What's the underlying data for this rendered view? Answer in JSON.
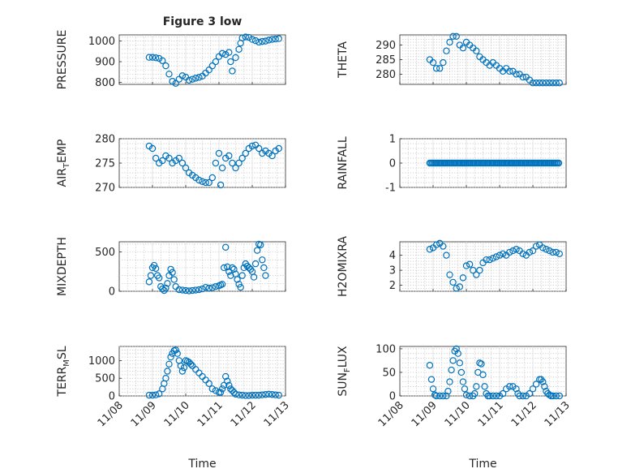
{
  "figure": {
    "title": "Figure 3 low",
    "x_label": "Time"
  },
  "colors": {
    "marker": "#0072BD",
    "axes": "#262626",
    "grid": "#bdbdbd"
  },
  "chart_data": [
    {
      "type": "scatter",
      "ylabel": "PRESSURE",
      "title": "Figure 3 low",
      "xlim": [
        0,
        5
      ],
      "ylim": [
        790,
        1030
      ],
      "yticks": [
        800,
        900,
        1000
      ],
      "yticklabels": [
        "800",
        "900",
        "1000"
      ],
      "x_tick_labels_shown": false,
      "grid": true,
      "marker": "open-circle",
      "x": [
        0.9,
        1.0,
        1.1,
        1.2,
        1.3,
        1.4,
        1.5,
        1.6,
        1.7,
        1.8,
        1.9,
        2.0,
        2.1,
        2.2,
        2.3,
        2.4,
        2.5,
        2.6,
        2.7,
        2.8,
        2.9,
        3.0,
        3.1,
        3.2,
        3.3,
        3.35,
        3.4,
        3.5,
        3.6,
        3.65,
        3.7,
        3.8,
        3.9,
        4.0,
        4.1,
        4.2,
        4.3,
        4.4,
        4.5,
        4.6,
        4.7,
        4.8
      ],
      "y": [
        921,
        921,
        919,
        916,
        905,
        880,
        840,
        805,
        795,
        815,
        832,
        825,
        810,
        815,
        820,
        824,
        830,
        845,
        860,
        880,
        900,
        925,
        940,
        935,
        945,
        900,
        855,
        920,
        960,
        990,
        1015,
        1020,
        1018,
        1008,
        1002,
        995,
        998,
        1000,
        1005,
        1008,
        1010,
        1012
      ]
    },
    {
      "type": "scatter",
      "ylabel": "THETA",
      "xlim": [
        0,
        5
      ],
      "ylim": [
        276.5,
        293.5
      ],
      "yticks": [
        280,
        285,
        290
      ],
      "yticklabels": [
        "280",
        "285",
        "290"
      ],
      "x_tick_labels_shown": false,
      "grid": true,
      "marker": "open-circle",
      "x": [
        0.9,
        1.0,
        1.1,
        1.2,
        1.3,
        1.4,
        1.5,
        1.6,
        1.7,
        1.8,
        1.9,
        2.0,
        2.1,
        2.2,
        2.3,
        2.4,
        2.5,
        2.6,
        2.7,
        2.8,
        2.9,
        3.0,
        3.1,
        3.2,
        3.3,
        3.4,
        3.5,
        3.6,
        3.7,
        3.8,
        3.9,
        4.0,
        4.1,
        4.2,
        4.3,
        4.4,
        4.5,
        4.6,
        4.7,
        4.8
      ],
      "y": [
        285,
        284,
        282,
        282,
        284,
        288,
        291,
        293,
        293,
        290,
        289,
        291,
        290,
        289,
        288,
        286,
        285,
        284,
        283,
        284,
        283,
        282,
        281,
        282,
        281,
        281,
        280,
        280,
        279,
        279,
        278,
        277,
        277,
        277,
        277,
        277,
        277,
        277,
        277,
        277
      ]
    },
    {
      "type": "scatter",
      "ylabel": "AIR_TEMP",
      "xlim": [
        0,
        5
      ],
      "ylim": [
        270,
        280
      ],
      "yticks": [
        270,
        275,
        280
      ],
      "yticklabels": [
        "270",
        "275",
        "280"
      ],
      "x_tick_labels_shown": false,
      "grid": true,
      "marker": "open-circle",
      "x": [
        0.9,
        1.0,
        1.1,
        1.2,
        1.3,
        1.4,
        1.5,
        1.6,
        1.7,
        1.8,
        1.9,
        2.0,
        2.1,
        2.2,
        2.3,
        2.4,
        2.5,
        2.6,
        2.7,
        2.8,
        2.9,
        3.0,
        3.05,
        3.1,
        3.2,
        3.3,
        3.4,
        3.5,
        3.6,
        3.7,
        3.8,
        3.9,
        4.0,
        4.1,
        4.2,
        4.3,
        4.4,
        4.5,
        4.6,
        4.7,
        4.8
      ],
      "y": [
        278.5,
        278,
        276,
        275,
        275.5,
        276.5,
        276,
        275,
        275.5,
        276,
        275,
        274,
        273,
        272.5,
        272,
        271.5,
        271.2,
        271,
        271,
        272,
        275,
        277,
        270.5,
        274,
        276,
        276.5,
        275,
        274,
        275,
        276,
        277,
        278,
        278.5,
        278.7,
        278,
        277,
        277.5,
        277,
        276.5,
        277.5,
        278
      ]
    },
    {
      "type": "scatter",
      "ylabel": "RAINFALL",
      "xlim": [
        0,
        5
      ],
      "ylim": [
        -1,
        1
      ],
      "yticks": [
        -1,
        0,
        1
      ],
      "yticklabels": [
        "-1",
        "0",
        "1"
      ],
      "x_tick_labels_shown": false,
      "grid": true,
      "marker": "open-circle",
      "x_start": 0.9,
      "x_end": 4.8,
      "constant_y": 0
    },
    {
      "type": "scatter",
      "ylabel": "MIXDEPTH",
      "xlim": [
        0,
        5
      ],
      "ylim": [
        0,
        630
      ],
      "yticks": [
        0,
        500
      ],
      "yticklabels": [
        "0",
        "500"
      ],
      "x_tick_labels_shown": false,
      "grid": true,
      "marker": "open-circle",
      "x": [
        0.9,
        0.95,
        1.0,
        1.05,
        1.1,
        1.15,
        1.2,
        1.25,
        1.3,
        1.35,
        1.4,
        1.45,
        1.5,
        1.55,
        1.6,
        1.65,
        1.7,
        1.8,
        1.9,
        2.0,
        2.1,
        2.2,
        2.3,
        2.4,
        2.5,
        2.6,
        2.7,
        2.8,
        2.9,
        3.0,
        3.05,
        3.1,
        3.15,
        3.2,
        3.25,
        3.3,
        3.35,
        3.4,
        3.45,
        3.5,
        3.55,
        3.6,
        3.65,
        3.7,
        3.75,
        3.8,
        3.85,
        3.9,
        3.95,
        4.0,
        4.05,
        4.1,
        4.15,
        4.2,
        4.25,
        4.3,
        4.35,
        4.4
      ],
      "y": [
        120,
        200,
        300,
        330,
        290,
        200,
        170,
        60,
        30,
        10,
        40,
        100,
        200,
        280,
        240,
        150,
        60,
        20,
        15,
        10,
        5,
        10,
        15,
        20,
        30,
        50,
        40,
        45,
        60,
        70,
        80,
        90,
        300,
        560,
        310,
        250,
        200,
        300,
        280,
        220,
        150,
        90,
        50,
        200,
        300,
        350,
        320,
        300,
        280,
        250,
        180,
        350,
        520,
        600,
        590,
        400,
        300,
        200
      ]
    },
    {
      "type": "scatter",
      "ylabel": "H2OMIXRA",
      "xlim": [
        0,
        5
      ],
      "ylim": [
        1.6,
        4.9
      ],
      "yticks": [
        2,
        3,
        4
      ],
      "yticklabels": [
        "2",
        "3",
        "4"
      ],
      "x_tick_labels_shown": false,
      "grid": true,
      "marker": "open-circle",
      "x": [
        0.9,
        1.0,
        1.1,
        1.2,
        1.3,
        1.4,
        1.5,
        1.6,
        1.7,
        1.8,
        1.9,
        2.0,
        2.1,
        2.2,
        2.3,
        2.4,
        2.5,
        2.6,
        2.7,
        2.8,
        2.9,
        3.0,
        3.1,
        3.2,
        3.3,
        3.4,
        3.5,
        3.6,
        3.7,
        3.8,
        3.9,
        4.0,
        4.1,
        4.2,
        4.3,
        4.4,
        4.5,
        4.6,
        4.7,
        4.8
      ],
      "y": [
        4.4,
        4.5,
        4.7,
        4.8,
        4.6,
        4.0,
        2.7,
        2.2,
        1.8,
        1.9,
        2.5,
        3.3,
        3.4,
        3.0,
        2.7,
        3.0,
        3.5,
        3.7,
        3.7,
        3.8,
        3.9,
        4.0,
        4.1,
        4.0,
        4.2,
        4.3,
        4.4,
        4.3,
        4.1,
        4.0,
        4.2,
        4.3,
        4.6,
        4.7,
        4.5,
        4.4,
        4.3,
        4.2,
        4.2,
        4.1
      ]
    },
    {
      "type": "scatter",
      "ylabel": "TERR_MSL",
      "xlim": [
        0,
        5
      ],
      "ylim": [
        0,
        1400
      ],
      "yticks": [
        0,
        500,
        1000
      ],
      "yticklabels": [
        "0",
        "500",
        "1000"
      ],
      "x_tick_labels_shown": true,
      "grid": true,
      "marker": "open-circle",
      "x": [
        0.9,
        1.0,
        1.1,
        1.2,
        1.3,
        1.35,
        1.4,
        1.45,
        1.5,
        1.55,
        1.6,
        1.65,
        1.7,
        1.75,
        1.8,
        1.85,
        1.9,
        1.95,
        2.0,
        2.05,
        2.1,
        2.15,
        2.2,
        2.3,
        2.4,
        2.5,
        2.6,
        2.7,
        2.8,
        2.9,
        3.0,
        3.05,
        3.1,
        3.15,
        3.2,
        3.25,
        3.3,
        3.35,
        3.4,
        3.45,
        3.5,
        3.6,
        3.7,
        3.8,
        3.9,
        4.0,
        4.1,
        4.2,
        4.3,
        4.4,
        4.5,
        4.6,
        4.7,
        4.8
      ],
      "y": [
        20,
        20,
        30,
        60,
        200,
        350,
        500,
        700,
        900,
        1100,
        1200,
        1280,
        1300,
        1200,
        1000,
        850,
        700,
        800,
        1000,
        980,
        950,
        900,
        850,
        750,
        650,
        550,
        450,
        350,
        200,
        150,
        100,
        100,
        200,
        300,
        550,
        420,
        300,
        200,
        150,
        100,
        50,
        30,
        20,
        10,
        10,
        20,
        20,
        20,
        30,
        40,
        50,
        40,
        30,
        20
      ]
    },
    {
      "type": "scatter",
      "ylabel": "SUN_FLUX",
      "xlim": [
        0,
        5
      ],
      "ylim": [
        0,
        105
      ],
      "yticks": [
        0,
        50,
        100
      ],
      "yticklabels": [
        "0",
        "50",
        "100"
      ],
      "x_tick_labels_shown": true,
      "grid": true,
      "marker": "open-circle",
      "x": [
        0.9,
        0.95,
        1.0,
        1.05,
        1.1,
        1.2,
        1.3,
        1.4,
        1.45,
        1.5,
        1.55,
        1.6,
        1.65,
        1.7,
        1.75,
        1.8,
        1.85,
        1.9,
        1.95,
        2.0,
        2.1,
        2.2,
        2.25,
        2.3,
        2.35,
        2.4,
        2.45,
        2.5,
        2.55,
        2.6,
        2.65,
        2.7,
        2.8,
        2.9,
        3.0,
        3.1,
        3.2,
        3.3,
        3.4,
        3.5,
        3.55,
        3.6,
        3.7,
        3.8,
        3.9,
        4.0,
        4.1,
        4.2,
        4.25,
        4.3,
        4.35,
        4.4,
        4.45,
        4.5,
        4.55,
        4.6,
        4.7,
        4.8
      ],
      "y": [
        65,
        35,
        15,
        2,
        0,
        0,
        0,
        0,
        10,
        30,
        55,
        75,
        95,
        100,
        90,
        70,
        50,
        30,
        15,
        2,
        0,
        0,
        5,
        20,
        50,
        70,
        68,
        45,
        20,
        5,
        0,
        0,
        0,
        0,
        0,
        5,
        15,
        20,
        20,
        15,
        5,
        0,
        0,
        0,
        5,
        15,
        25,
        35,
        35,
        30,
        20,
        10,
        5,
        2,
        0,
        0,
        0,
        0
      ]
    }
  ],
  "subplot_ylabels": [
    {
      "text": "PRESSURE",
      "sub": ""
    },
    {
      "text": "THETA",
      "sub": ""
    },
    {
      "pre": "AIR",
      "sub": "T",
      "post": "EMP"
    },
    {
      "text": "RAINFALL",
      "sub": ""
    },
    {
      "text": "MIXDEPTH",
      "sub": ""
    },
    {
      "text": "H2OMIXRA",
      "sub": ""
    },
    {
      "pre": "TERR",
      "sub": "M",
      "post": "SL"
    },
    {
      "pre": "SUN",
      "sub": "F",
      "post": "LUX"
    }
  ],
  "x_tick_labels": [
    "11/08",
    "11/09",
    "11/10",
    "11/11",
    "11/12",
    "11/13"
  ]
}
